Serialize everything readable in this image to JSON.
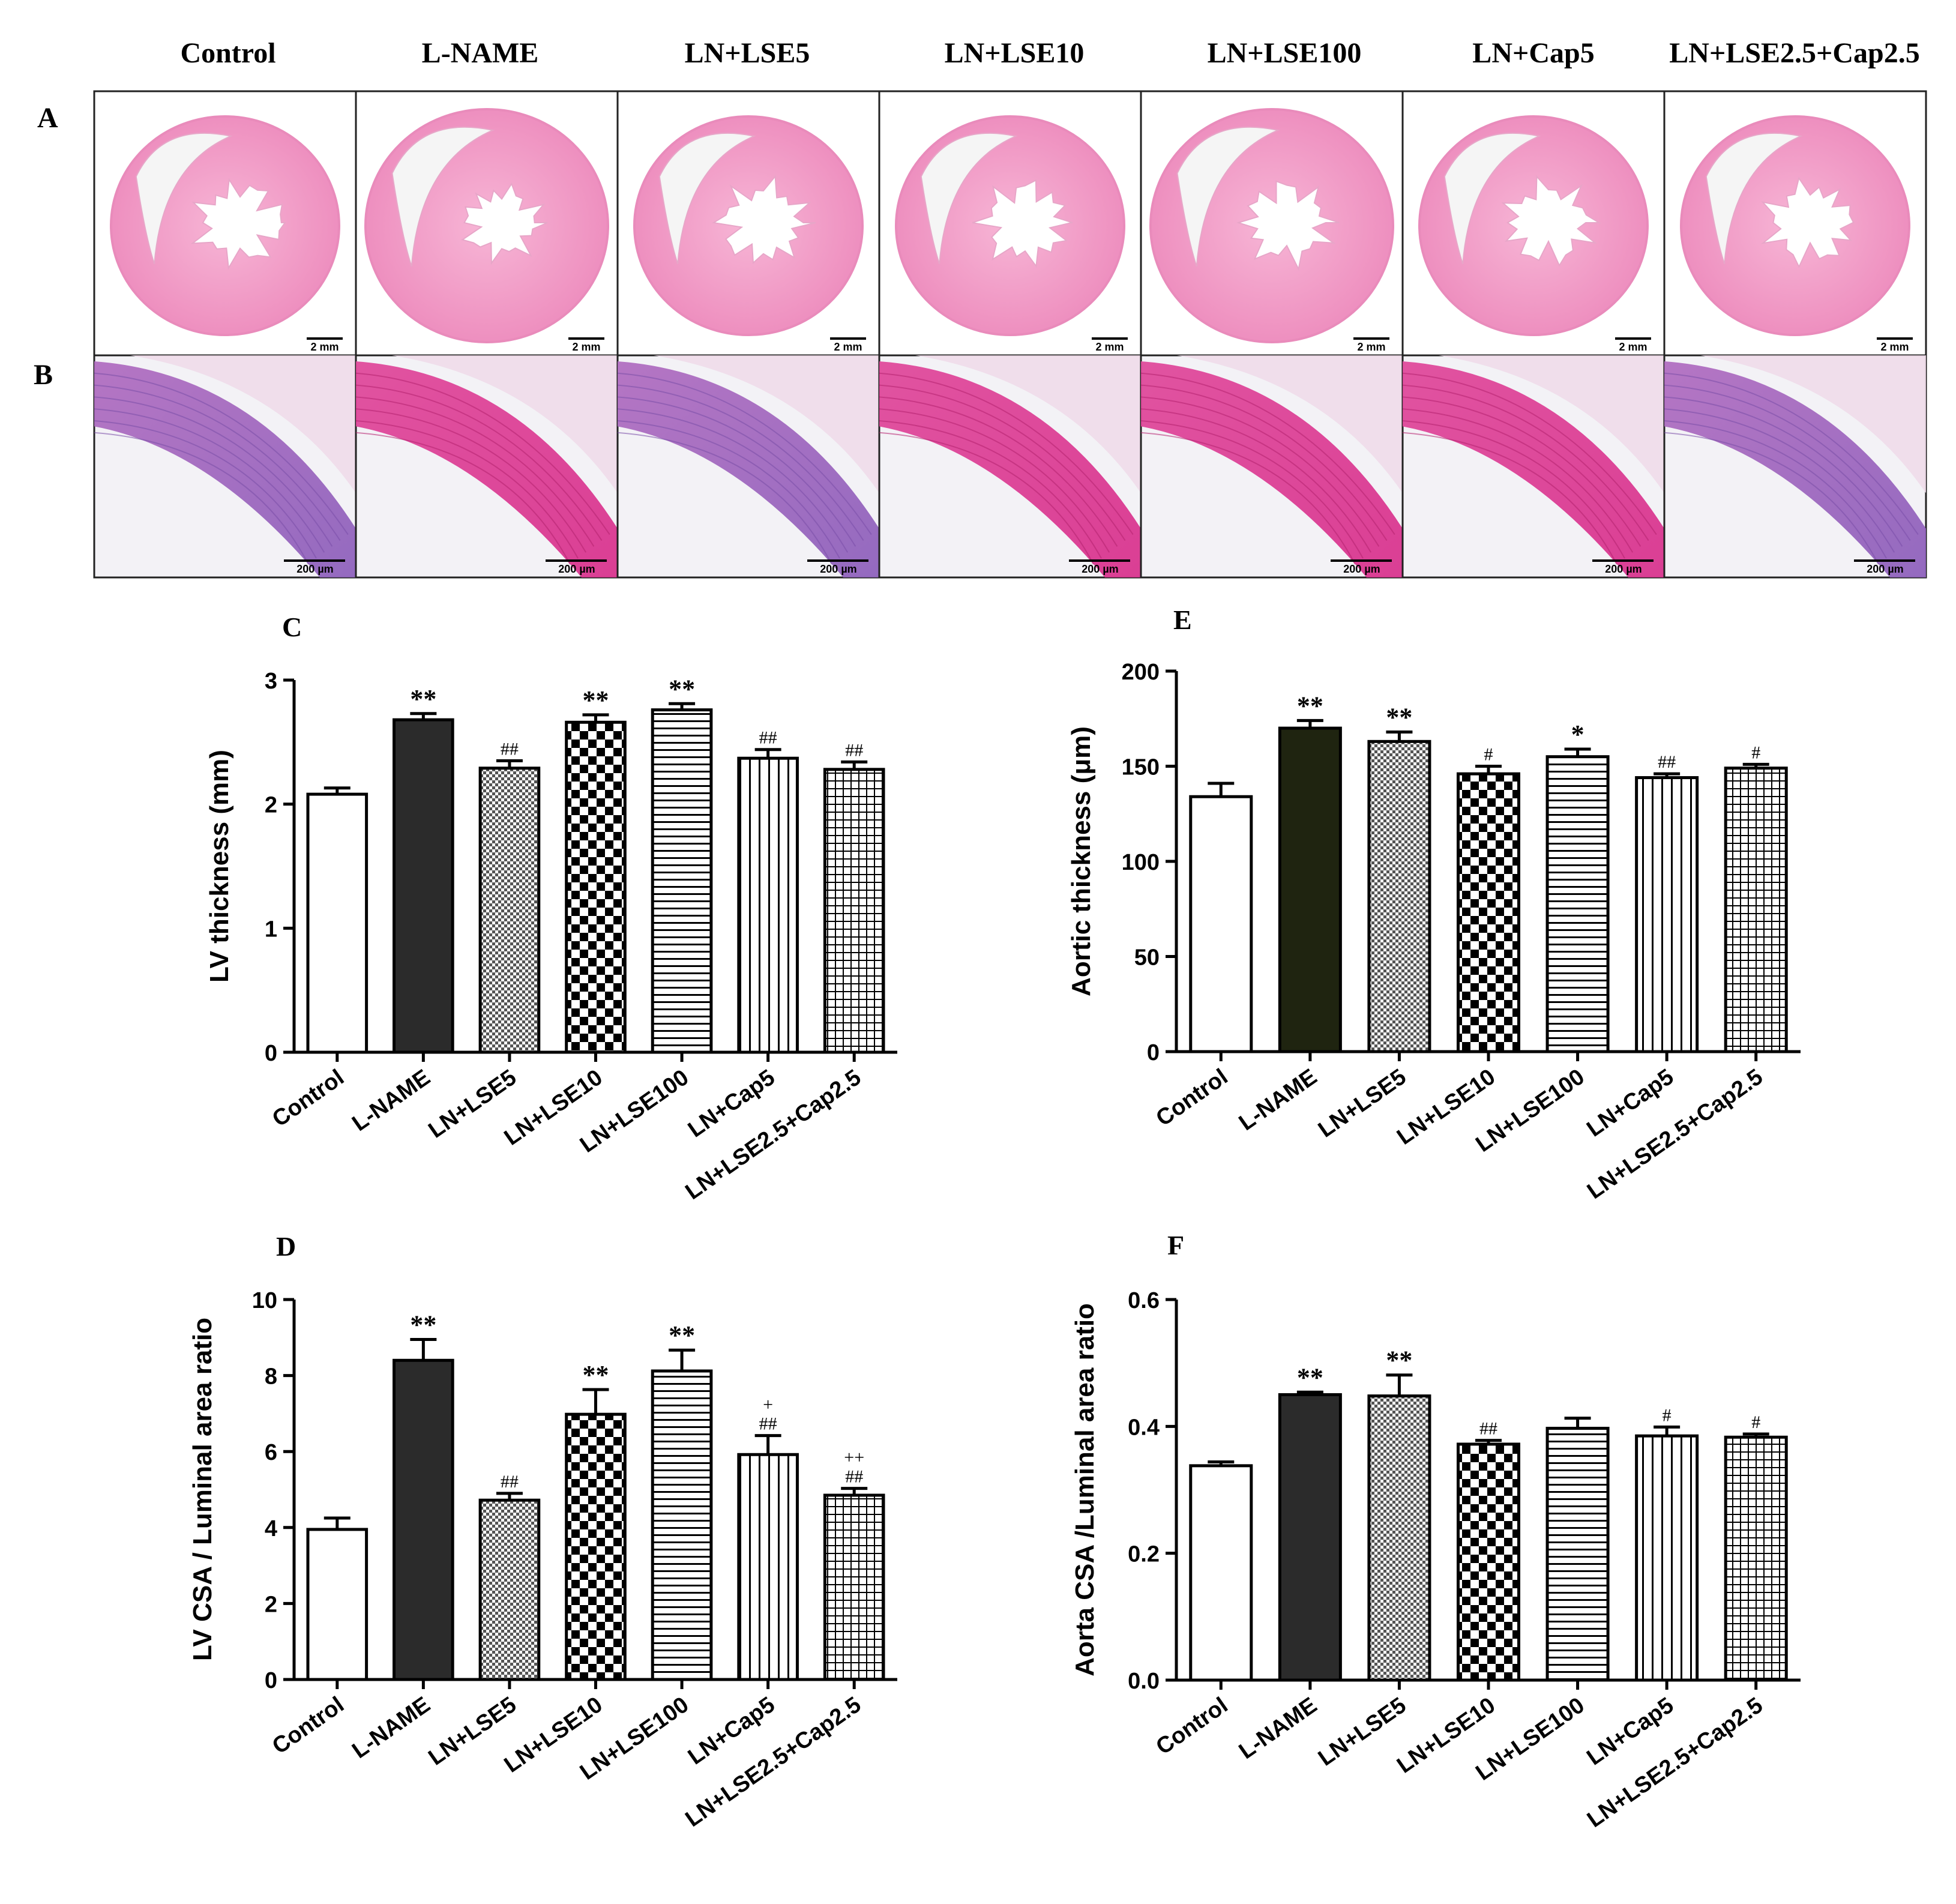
{
  "groups": [
    "Control",
    "L-NAME",
    "LN+LSE5",
    "LN+LSE10",
    "LN+LSE100",
    "LN+Cap5",
    "LN+LSE2.5+Cap2.5"
  ],
  "panel_labels": {
    "A": "A",
    "B": "B",
    "C": "C",
    "D": "D",
    "E": "E",
    "F": "F"
  },
  "histology": {
    "scale_bar_heart": "2 mm",
    "scale_bar_aorta": "200 µm"
  },
  "colors": {
    "he_pink": "#f19ac6",
    "he_pink_light": "#f7c4de",
    "he_purple": "#a079c7",
    "he_magenta": "#d9358f",
    "bar_dark": "#2b2b2b",
    "bar_dark_e": "#1f2410",
    "axis": "#000000"
  },
  "chart_data": [
    {
      "id": "C",
      "type": "bar",
      "categories": [
        "Control",
        "L-NAME",
        "LN+LSE5",
        "LN+LSE10",
        "LN+LSE100",
        "LN+Cap5",
        "LN+LSE2.5+Cap2.5"
      ],
      "values": [
        2.08,
        2.68,
        2.29,
        2.66,
        2.76,
        2.37,
        2.28
      ],
      "errors": [
        0.05,
        0.05,
        0.06,
        0.06,
        0.05,
        0.07,
        0.06
      ],
      "annotations": [
        [],
        [
          "**"
        ],
        [
          "##"
        ],
        [
          "**"
        ],
        [
          "**"
        ],
        [
          "##"
        ],
        [
          "##"
        ]
      ],
      "patterns": [
        "white",
        "dark",
        "dots",
        "checker",
        "hlines",
        "vlines",
        "grid"
      ],
      "ylabel": "LV thickness (mm)",
      "ylim": [
        0,
        3
      ],
      "yticks": [
        0,
        1,
        2,
        3
      ]
    },
    {
      "id": "D",
      "type": "bar",
      "categories": [
        "Control",
        "L-NAME",
        "LN+LSE5",
        "LN+LSE10",
        "LN+LSE100",
        "LN+Cap5",
        "LN+LSE2.5+Cap2.5"
      ],
      "values": [
        3.95,
        8.4,
        4.72,
        6.98,
        8.12,
        5.92,
        4.85
      ],
      "errors": [
        0.3,
        0.55,
        0.18,
        0.65,
        0.55,
        0.5,
        0.18
      ],
      "annotations": [
        [],
        [
          "**"
        ],
        [
          "##"
        ],
        [
          "**"
        ],
        [
          "**"
        ],
        [
          "##",
          "+"
        ],
        [
          "##",
          "++"
        ]
      ],
      "patterns": [
        "white",
        "dark",
        "dots",
        "checker",
        "hlines",
        "vlines",
        "grid"
      ],
      "ylabel": "LV CSA / Luminal area ratio",
      "ylim": [
        0,
        10
      ],
      "yticks": [
        0,
        2,
        4,
        6,
        8,
        10
      ]
    },
    {
      "id": "E",
      "type": "bar",
      "categories": [
        "Control",
        "L-NAME",
        "LN+LSE5",
        "LN+LSE10",
        "LN+LSE100",
        "LN+Cap5",
        "LN+LSE2.5+Cap2.5"
      ],
      "values": [
        134,
        170,
        163,
        146,
        155,
        144,
        149
      ],
      "errors": [
        7,
        4,
        5,
        4,
        4,
        2,
        2
      ],
      "annotations": [
        [],
        [
          "**"
        ],
        [
          "**"
        ],
        [
          "#"
        ],
        [
          "*"
        ],
        [
          "##"
        ],
        [
          "#"
        ]
      ],
      "patterns": [
        "white",
        "darkE",
        "dots",
        "checker",
        "hlines",
        "vlines",
        "grid"
      ],
      "ylabel": "Aortic thickness (μm)",
      "ylim": [
        0,
        200
      ],
      "yticks": [
        0,
        50,
        100,
        150,
        200
      ]
    },
    {
      "id": "F",
      "type": "bar",
      "categories": [
        "Control",
        "L-NAME",
        "LN+LSE5",
        "LN+LSE10",
        "LN+LSE100",
        "LN+Cap5",
        "LN+LSE2.5+Cap2.5"
      ],
      "values": [
        0.338,
        0.45,
        0.448,
        0.372,
        0.397,
        0.385,
        0.383
      ],
      "errors": [
        0.006,
        0.004,
        0.033,
        0.006,
        0.016,
        0.014,
        0.005
      ],
      "annotations": [
        [],
        [
          "**"
        ],
        [
          "**"
        ],
        [
          "##"
        ],
        [],
        [
          "#"
        ],
        [
          "#"
        ]
      ],
      "patterns": [
        "white",
        "dark",
        "dots",
        "checker",
        "hlines",
        "vlines",
        "grid"
      ],
      "ylabel": "Aorta CSA /Luminal area ratio",
      "ylim": [
        0,
        0.6
      ],
      "yticks": [
        "0.0",
        "0.2",
        "0.4",
        "0.6"
      ]
    }
  ]
}
